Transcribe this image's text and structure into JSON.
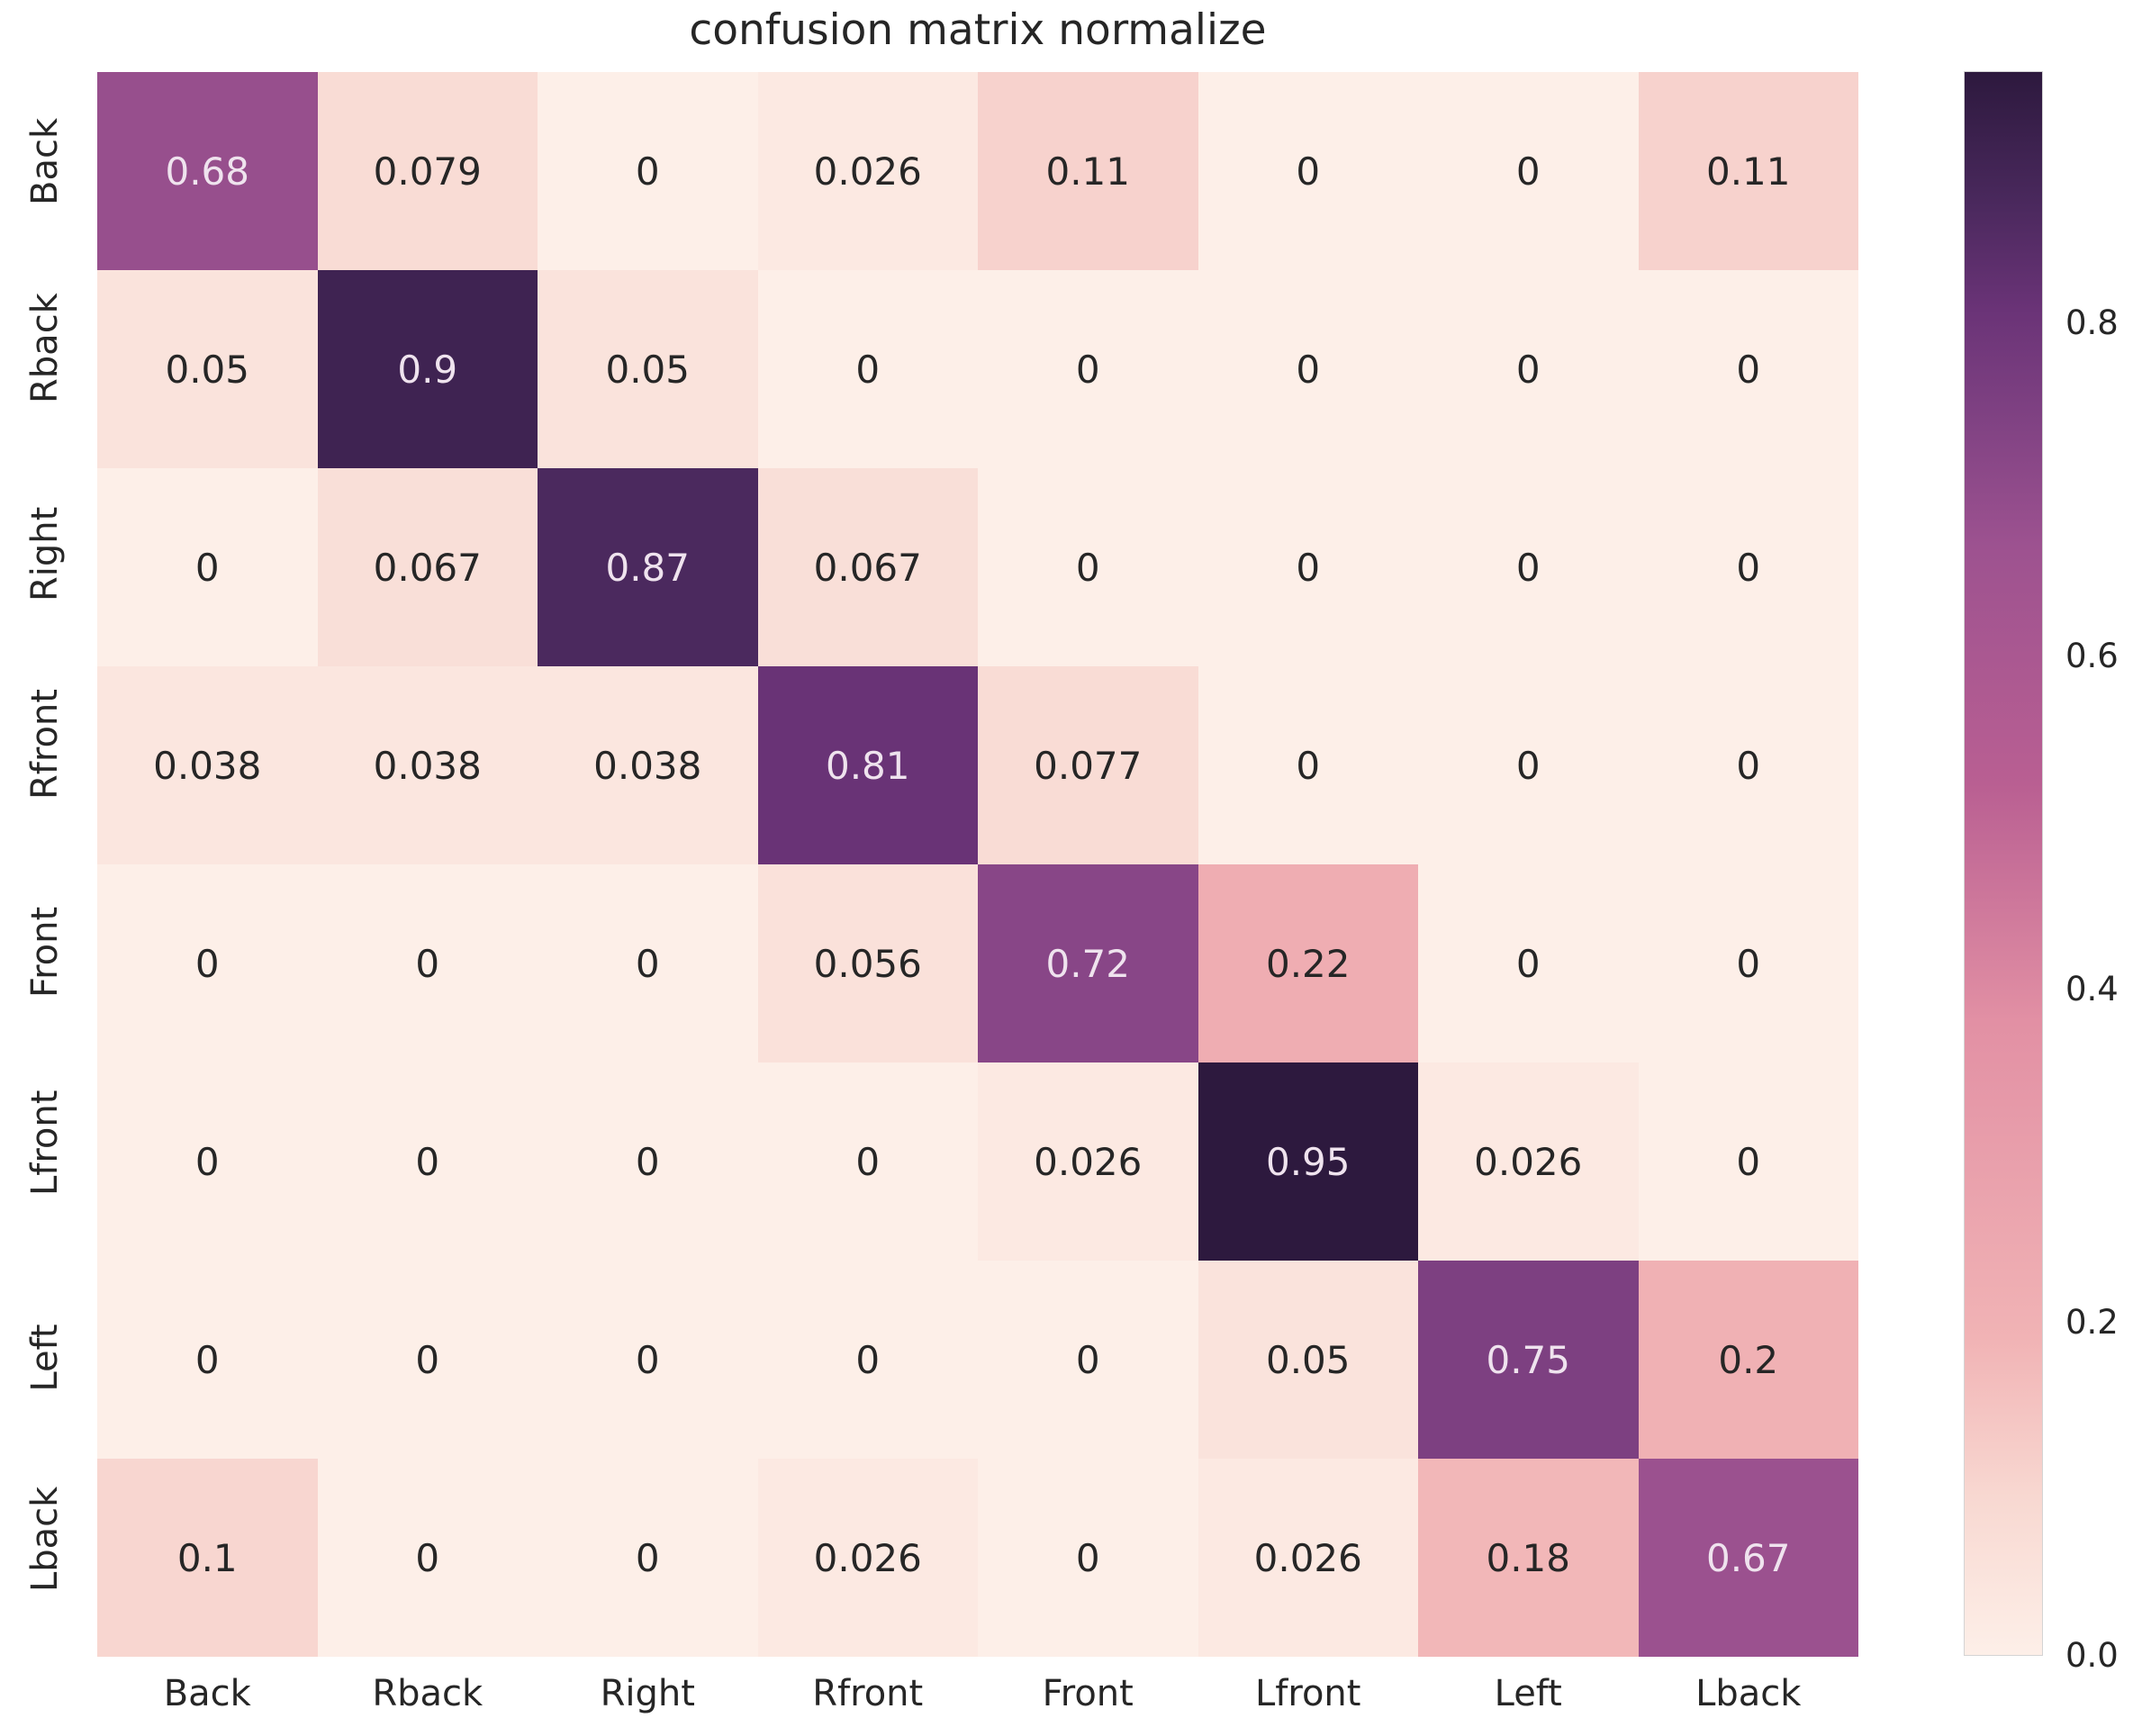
{
  "title": "confusion matrix normalize",
  "chart_data": {
    "type": "heatmap",
    "x_categories": [
      "Back",
      "Rback",
      "Right",
      "Rfront",
      "Front",
      "Lfront",
      "Left",
      "Lback"
    ],
    "y_categories": [
      "Back",
      "Rback",
      "Right",
      "Rfront",
      "Front",
      "Lfront",
      "Left",
      "Lback"
    ],
    "matrix": [
      [
        0.68,
        0.079,
        0,
        0.026,
        0.11,
        0,
        0,
        0.11
      ],
      [
        0.05,
        0.9,
        0.05,
        0,
        0,
        0,
        0,
        0
      ],
      [
        0,
        0.067,
        0.87,
        0.067,
        0,
        0,
        0,
        0
      ],
      [
        0.038,
        0.038,
        0.038,
        0.81,
        0.077,
        0,
        0,
        0
      ],
      [
        0,
        0,
        0,
        0.056,
        0.72,
        0.22,
        0,
        0
      ],
      [
        0,
        0,
        0,
        0,
        0.026,
        0.95,
        0.026,
        0
      ],
      [
        0,
        0,
        0,
        0,
        0,
        0.05,
        0.75,
        0.2
      ],
      [
        0.1,
        0,
        0,
        0.026,
        0,
        0.026,
        0.18,
        0.67
      ]
    ],
    "vmin": 0,
    "vmax": 0.95,
    "grid": false,
    "legend_position": "right-colorbar",
    "colorbar_ticks": [
      {
        "value": 0.8,
        "label": "0.8"
      },
      {
        "value": 0.6,
        "label": "0.6"
      },
      {
        "value": 0.4,
        "label": "0.4"
      },
      {
        "value": 0.2,
        "label": "0.2"
      },
      {
        "value": 0.0,
        "label": "0.0"
      }
    ],
    "colormap_stops": [
      {
        "t": 0.0,
        "color": "#fdefe8"
      },
      {
        "t": 0.1,
        "color": "#f8d8d1"
      },
      {
        "t": 0.2,
        "color": "#f1b3b5"
      },
      {
        "t": 0.4,
        "color": "#e290a4"
      },
      {
        "t": 0.55,
        "color": "#b95f92"
      },
      {
        "t": 0.7,
        "color": "#9d5290"
      },
      {
        "t": 0.78,
        "color": "#804283"
      },
      {
        "t": 0.85,
        "color": "#6a3377"
      },
      {
        "t": 0.92,
        "color": "#49285c"
      },
      {
        "t": 1.0,
        "color": "#2d193e"
      }
    ],
    "annotation_text_colors": {
      "light_cells": "#262626",
      "dark_cells": "#efe3ee"
    }
  }
}
